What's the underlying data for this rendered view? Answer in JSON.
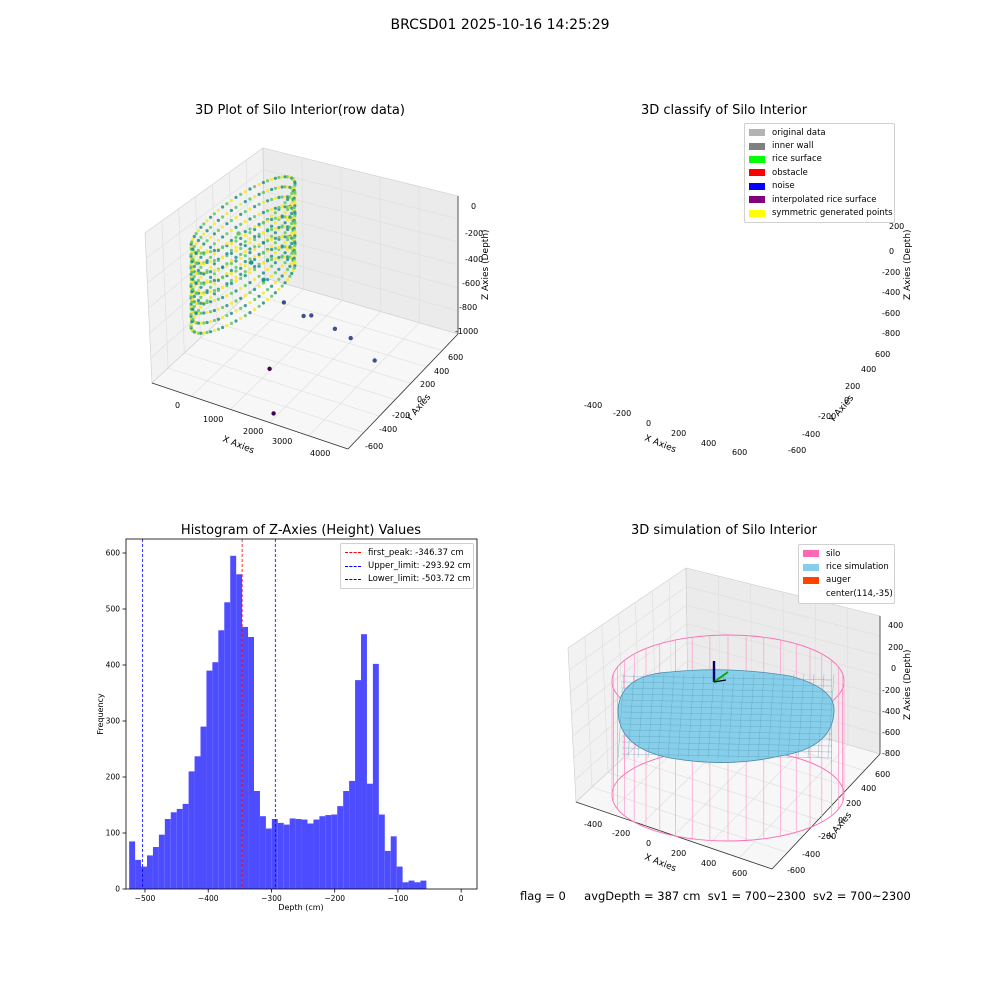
{
  "figure_title": "BRCSD01 2025-10-16 14:25:29",
  "status_line": {
    "flag": "flag = 0",
    "avg_depth": "avgDepth = 387 cm",
    "sv1": "sv1 = 700~2300",
    "sv2": "sv2 = 700~2300"
  },
  "chart_data": [
    {
      "type": "scatter",
      "title": "3D Plot of Silo Interior(row data)",
      "xlabel": "X Axies",
      "ylabel": "Y Axies",
      "zlabel": "Z Axies (Depth)",
      "x_ticks": [
        "0",
        "1000",
        "2000",
        "3000",
        "4000"
      ],
      "y_ticks": [
        "-600",
        "-400",
        "-200",
        "0",
        "200",
        "400",
        "600"
      ],
      "z_ticks": [
        "-1000",
        "-800",
        "-600",
        "-400",
        "-200",
        "0"
      ],
      "xlim": [
        -500,
        4500
      ],
      "ylim": [
        -700,
        700
      ],
      "zlim": [
        -1000,
        0
      ],
      "grid": true,
      "colormap": "viridis",
      "outlier_points": [
        {
          "x": 400,
          "y": 0,
          "z": -280
        },
        {
          "x": 700,
          "y": 0,
          "z": -450
        },
        {
          "x": 1000,
          "y": 0,
          "z": -540
        },
        {
          "x": 1500,
          "y": 0,
          "z": -650
        },
        {
          "x": 2000,
          "y": 0,
          "z": -700
        },
        {
          "x": 2200,
          "y": 0,
          "z": -680
        },
        {
          "x": 2800,
          "y": 0,
          "z": -720
        },
        {
          "x": 3200,
          "y": 0,
          "z": -750
        },
        {
          "x": 1700,
          "y": -300,
          "z": -920
        },
        {
          "x": 3800,
          "y": 0,
          "z": -850
        },
        {
          "x": 2400,
          "y": -600,
          "z": -1000
        }
      ]
    },
    {
      "type": "scatter",
      "title": "3D classify of Silo Interior",
      "xlabel": "X Axies",
      "ylabel": "Y Axies",
      "zlabel": "Z Axies (Depth)",
      "x_ticks": [
        "-400",
        "-200",
        "0",
        "200",
        "400",
        "600"
      ],
      "y_ticks": [
        "-600",
        "-400",
        "-200",
        "0",
        "200",
        "400",
        "600"
      ],
      "z_ticks": [
        "-800",
        "-600",
        "-400",
        "-200",
        "0",
        "200"
      ],
      "legend": [
        {
          "label": "original data",
          "color": "#b3b3b3"
        },
        {
          "label": "inner wall",
          "color": "#808080"
        },
        {
          "label": "rice surface",
          "color": "#00ff00"
        },
        {
          "label": "obstacle",
          "color": "#ff0000"
        },
        {
          "label": "noise",
          "color": "#0000ff"
        },
        {
          "label": "interpolated rice surface",
          "color": "#800080"
        },
        {
          "label": "symmetric generated points",
          "color": "#ffff00"
        }
      ],
      "legend_position": "top-right",
      "grid": true
    },
    {
      "type": "bar",
      "title": "Histogram of Z-Axies (Height) Values",
      "xlabel": "Depth (cm)",
      "ylabel": "Frequency",
      "xlim": [
        -530,
        25
      ],
      "ylim": [
        0,
        625
      ],
      "x_ticks": [
        -500,
        -400,
        -300,
        -200,
        -100,
        0
      ],
      "y_ticks": [
        0,
        100,
        200,
        300,
        400,
        500,
        600
      ],
      "bin_start": -525,
      "bin_width": 9.4,
      "values": [
        85,
        52,
        40,
        60,
        75,
        97,
        125,
        137,
        143,
        152,
        210,
        237,
        290,
        390,
        405,
        462,
        512,
        595,
        562,
        468,
        450,
        175,
        130,
        108,
        125,
        118,
        115,
        126,
        125,
        124,
        117,
        124,
        130,
        132,
        133,
        148,
        175,
        193,
        373,
        455,
        188,
        402,
        133,
        68,
        94,
        40,
        12,
        15,
        12,
        15
      ],
      "bar_color": "#4d4dff",
      "lines": [
        {
          "label": "first_peak: -346.37 cm",
          "x": -346.37,
          "color": "#ff0000"
        },
        {
          "label": "Upper_limit: -293.92 cm",
          "x": -293.92,
          "color": "#0000ff"
        },
        {
          "label": "Lower_limit: -503.72 cm",
          "x": -503.72,
          "color": "#0000ff"
        }
      ],
      "legend_position": "top-right"
    },
    {
      "type": "surface",
      "title": "3D simulation of Silo Interior",
      "xlabel": "X Axies",
      "ylabel": "Y Axies",
      "zlabel": "Z Axies (Depth)",
      "x_ticks": [
        "-400",
        "-200",
        "0",
        "200",
        "400",
        "600"
      ],
      "y_ticks": [
        "-600",
        "-400",
        "-200",
        "0",
        "200",
        "400",
        "600"
      ],
      "z_ticks": [
        "-800",
        "-600",
        "-400",
        "-200",
        "0",
        "200",
        "400"
      ],
      "legend": [
        {
          "label": "silo",
          "color": "#ff69b4"
        },
        {
          "label": "rice simulation",
          "color": "#87ceeb"
        },
        {
          "label": "auger",
          "color": "#ff4500"
        },
        {
          "label": "center(114,-35)",
          "color": ""
        }
      ],
      "legend_position": "top-right",
      "grid": true
    }
  ]
}
